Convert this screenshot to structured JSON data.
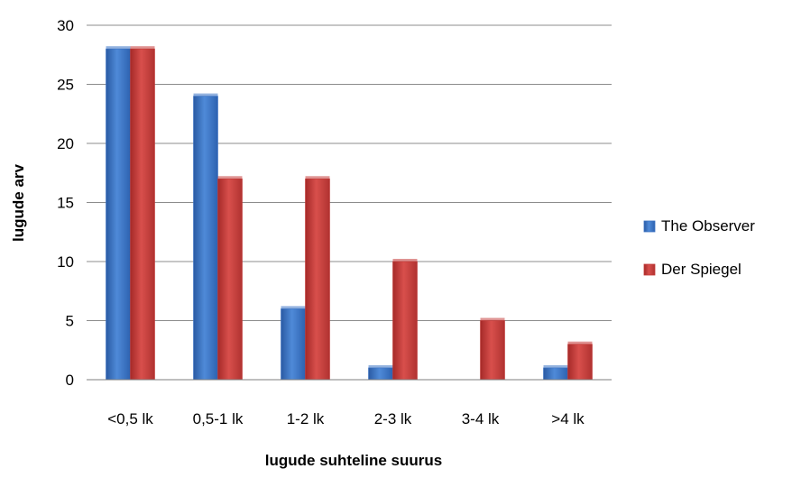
{
  "chart_data": {
    "type": "bar",
    "title": "",
    "xlabel": "lugude suhteline suurus",
    "ylabel": "lugude arv",
    "categories": [
      "<0,5 lk",
      "0,5-1 lk",
      "1-2 lk",
      "2-3 lk",
      "3-4 lk",
      ">4 lk"
    ],
    "series": [
      {
        "name": "The Observer",
        "values": [
          28,
          24,
          6,
          1,
          0,
          1
        ],
        "color": "#3b72c4"
      },
      {
        "name": "Der Spiegel",
        "values": [
          28,
          17,
          17,
          10,
          5,
          3
        ],
        "color": "#c43a38"
      }
    ],
    "ylim": [
      0,
      30
    ],
    "yticks": [
      0,
      5,
      10,
      15,
      20,
      25,
      30
    ],
    "grid": true,
    "legend_position": "right"
  }
}
